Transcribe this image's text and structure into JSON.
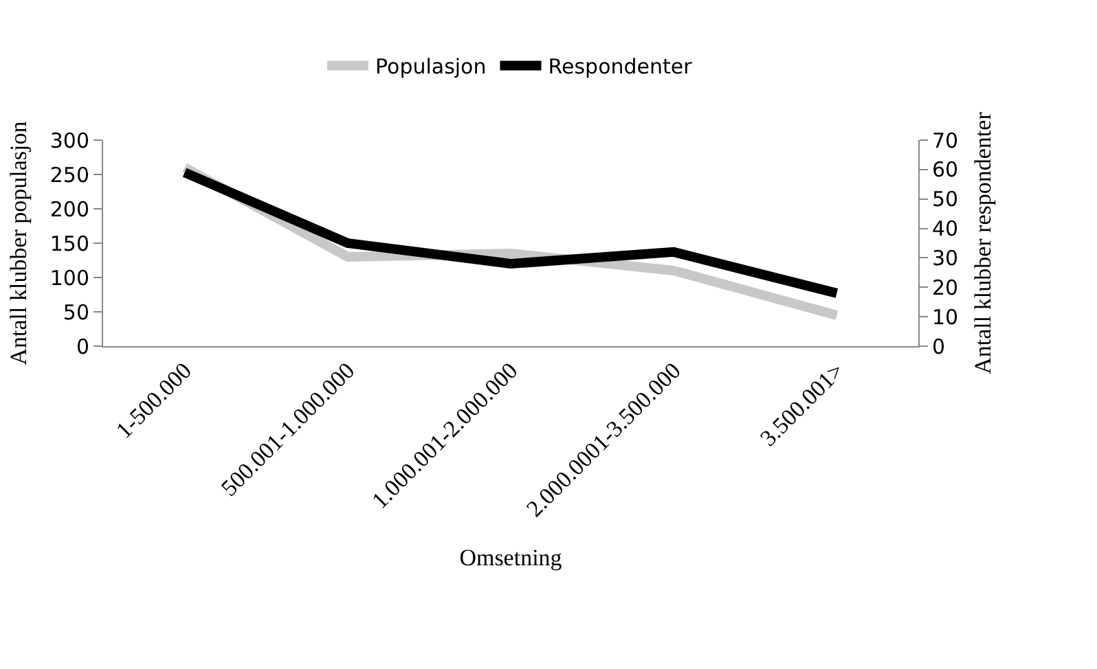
{
  "chart_data": {
    "type": "line",
    "xlabel": "Omsetning",
    "ylabel": "Antall klubber populasjon",
    "y2label": "Antall klubber respondenter",
    "categories": [
      "1-500.000",
      "500.001-1.000.000",
      "1.000.001-2.000.000",
      "2.000.0001-3.500.000",
      "3.500.001>"
    ],
    "series": [
      {
        "name": "Populasjon",
        "color": "#c8c8c8",
        "values": [
          260,
          130,
          135,
          110,
          45
        ]
      },
      {
        "name": "Respondenter",
        "color": "#000000",
        "axis": "y2",
        "values": [
          59,
          35,
          28,
          32,
          18
        ]
      }
    ],
    "ylim": [
      0,
      300
    ],
    "yticks": [
      0,
      50,
      100,
      150,
      200,
      250,
      300
    ],
    "y2lim": [
      0,
      70
    ],
    "y2ticks": [
      0,
      10,
      20,
      30,
      40,
      50,
      60,
      70
    ],
    "grid": false,
    "legend": "top",
    "marker": "none",
    "line_style": "solid"
  }
}
